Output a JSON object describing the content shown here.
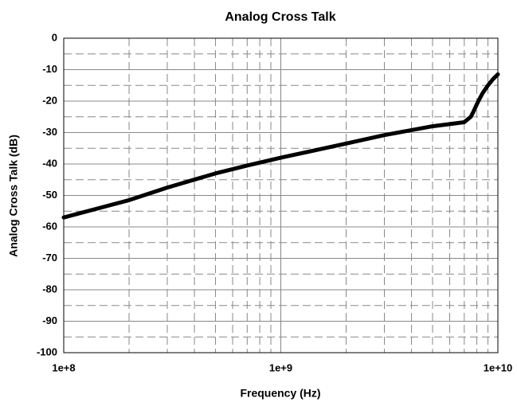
{
  "chart_data": {
    "type": "line",
    "title": "Analog Cross Talk",
    "xlabel": "Frequency (Hz)",
    "ylabel": "Analog Cross Talk (dB)",
    "xscale": "log",
    "x": [
      100000000,
      200000000,
      300000000,
      500000000,
      700000000,
      1000000000,
      2000000000,
      3000000000,
      5000000000,
      6500000000,
      7000000000,
      7200000000,
      7500000000,
      7700000000,
      8000000000,
      8200000000,
      8500000000,
      8800000000,
      9000000000,
      9500000000,
      10000000000
    ],
    "series": [
      {
        "name": "Analog Cross Talk",
        "color": "#000000",
        "values": [
          -57,
          -51.5,
          -47.5,
          -43,
          -40.5,
          -38,
          -33.5,
          -30.8,
          -28,
          -27,
          -26.7,
          -26,
          -25,
          -23.5,
          -21,
          -19.5,
          -17.5,
          -16,
          -15,
          -13,
          -11.5
        ]
      }
    ],
    "xlim": [
      100000000,
      10000000000
    ],
    "xticks": [
      {
        "value": 100000000,
        "label": "1e+8"
      },
      {
        "value": 1000000000,
        "label": "1e+9"
      },
      {
        "value": 10000000000,
        "label": "1e+10"
      }
    ],
    "xminorticks": [
      200000000,
      300000000,
      400000000,
      500000000,
      600000000,
      700000000,
      800000000,
      900000000,
      2000000000,
      3000000000,
      4000000000,
      5000000000,
      6000000000,
      7000000000,
      8000000000,
      9000000000
    ],
    "ylim": [
      -100,
      0
    ],
    "yticks": [
      -100,
      -90,
      -80,
      -70,
      -60,
      -50,
      -40,
      -30,
      -20,
      -10,
      0
    ],
    "yminorticks": [
      -95,
      -85,
      -75,
      -65,
      -55,
      -45,
      -35,
      -25,
      -15,
      -5
    ],
    "grid": true
  }
}
